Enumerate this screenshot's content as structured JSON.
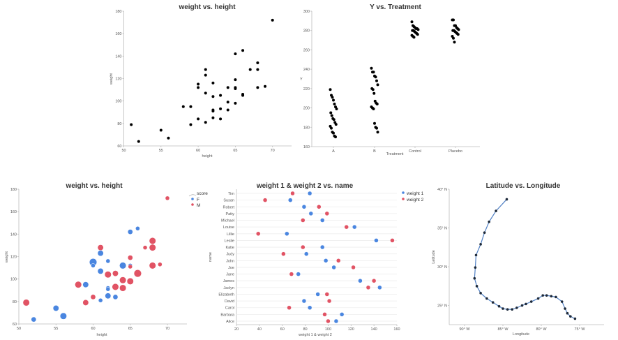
{
  "colors": {
    "F": "#4a86e0",
    "M": "#e15364",
    "weight 1": "#4a86e0",
    "weight 2": "#e15364",
    "dot": "#000000",
    "line": "#4f7fc4"
  },
  "chart_data": [
    {
      "type": "scatter",
      "title": "weight vs. height",
      "xlabel": "height",
      "ylabel": "weight",
      "xlim": [
        50,
        72.5
      ],
      "ylim": [
        60,
        180
      ],
      "xticks": [
        50,
        55,
        60,
        65,
        70
      ],
      "yticks": [
        60,
        80,
        100,
        120,
        140,
        160,
        180
      ],
      "x": [
        51,
        52,
        55,
        56,
        58,
        59,
        59,
        60,
        60,
        60,
        61,
        61,
        61,
        61,
        62,
        62,
        62,
        62,
        62,
        63,
        63,
        63,
        64,
        64,
        64,
        65,
        65,
        65,
        65,
        65,
        66,
        66,
        66,
        67,
        68,
        68,
        68,
        69,
        70
      ],
      "y": [
        79,
        64,
        74,
        67,
        95,
        95,
        79,
        115,
        112,
        84,
        128,
        123,
        107,
        81,
        116,
        104,
        92,
        91,
        85,
        105,
        93,
        84,
        112,
        99,
        92,
        142,
        119,
        112,
        111,
        98,
        145,
        106,
        105,
        128,
        134,
        128,
        112,
        113,
        172
      ]
    },
    {
      "type": "scatter",
      "title": "Y vs. Treatment",
      "xlabel": "Treatment",
      "ylabel": "Y",
      "ylim": [
        160,
        300
      ],
      "categories": [
        "A",
        "B",
        "Control",
        "Placebo"
      ],
      "yticks": [
        160,
        180,
        200,
        220,
        240,
        260,
        280,
        300
      ],
      "series": [
        {
          "category": "A",
          "values": [
            219,
            213,
            211,
            208,
            204,
            201,
            199,
            195,
            192,
            189,
            188,
            185,
            183,
            181,
            179,
            175,
            174,
            171,
            170
          ]
        },
        {
          "category": "B",
          "values": [
            241,
            237,
            237,
            233,
            232,
            228,
            224,
            220,
            219,
            215,
            207,
            205,
            204,
            201,
            200,
            199,
            184,
            180,
            179,
            175
          ]
        },
        {
          "category": "Control",
          "values": [
            289,
            285,
            284,
            283,
            282,
            282,
            281,
            280,
            280,
            279,
            278,
            277,
            276,
            275,
            274,
            273
          ]
        },
        {
          "category": "Placebo",
          "values": [
            291,
            291,
            285,
            285,
            283,
            282,
            281,
            280,
            280,
            279,
            278,
            277,
            276,
            274,
            272,
            268
          ]
        }
      ]
    },
    {
      "type": "scatter",
      "title": "weight vs. height",
      "xlabel": "height",
      "ylabel": "weight",
      "xlim": [
        50,
        72.5
      ],
      "ylim": [
        60,
        180
      ],
      "xticks": [
        50,
        55,
        60,
        65,
        70
      ],
      "yticks": [
        60,
        80,
        100,
        120,
        140,
        160,
        180
      ],
      "legend": {
        "size_title": "score",
        "entries": [
          "F",
          "M"
        ],
        "placement": "right"
      },
      "points": [
        {
          "x": 51,
          "y": 79,
          "g": "M",
          "score": 3
        },
        {
          "x": 52,
          "y": 64,
          "g": "F",
          "score": 2
        },
        {
          "x": 55,
          "y": 74,
          "g": "F",
          "score": 2.5
        },
        {
          "x": 56,
          "y": 67,
          "g": "F",
          "score": 3
        },
        {
          "x": 58,
          "y": 95,
          "g": "M",
          "score": 3
        },
        {
          "x": 59,
          "y": 95,
          "g": "F",
          "score": 2.5
        },
        {
          "x": 59,
          "y": 79,
          "g": "M",
          "score": 2.5
        },
        {
          "x": 60,
          "y": 115,
          "g": "F",
          "score": 3.5
        },
        {
          "x": 60,
          "y": 112,
          "g": "F",
          "score": 1.5
        },
        {
          "x": 60,
          "y": 84,
          "g": "M",
          "score": 2
        },
        {
          "x": 61,
          "y": 128,
          "g": "M",
          "score": 2.5
        },
        {
          "x": 61,
          "y": 123,
          "g": "F",
          "score": 2.5
        },
        {
          "x": 61,
          "y": 107,
          "g": "F",
          "score": 2.5
        },
        {
          "x": 61,
          "y": 81,
          "g": "F",
          "score": 1.5
        },
        {
          "x": 62,
          "y": 116,
          "g": "F",
          "score": 1.5
        },
        {
          "x": 62,
          "y": 104,
          "g": "M",
          "score": 3
        },
        {
          "x": 62,
          "y": 92,
          "g": "F",
          "score": 1.5
        },
        {
          "x": 62,
          "y": 91,
          "g": "F",
          "score": 1.5
        },
        {
          "x": 62,
          "y": 85,
          "g": "F",
          "score": 2.5
        },
        {
          "x": 63,
          "y": 105,
          "g": "M",
          "score": 2.5
        },
        {
          "x": 63,
          "y": 93,
          "g": "M",
          "score": 3
        },
        {
          "x": 63,
          "y": 84,
          "g": "F",
          "score": 2
        },
        {
          "x": 64,
          "y": 112,
          "g": "F",
          "score": 3
        },
        {
          "x": 64,
          "y": 99,
          "g": "M",
          "score": 3
        },
        {
          "x": 64,
          "y": 92,
          "g": "M",
          "score": 3
        },
        {
          "x": 65,
          "y": 142,
          "g": "F",
          "score": 2
        },
        {
          "x": 65,
          "y": 119,
          "g": "M",
          "score": 2
        },
        {
          "x": 65,
          "y": 112,
          "g": "F",
          "score": 1.5
        },
        {
          "x": 65,
          "y": 111,
          "g": "M",
          "score": 1.5
        },
        {
          "x": 65,
          "y": 98,
          "g": "M",
          "score": 3
        },
        {
          "x": 66,
          "y": 145,
          "g": "F",
          "score": 1.5
        },
        {
          "x": 66,
          "y": 105,
          "g": "M",
          "score": 3.5
        },
        {
          "x": 67,
          "y": 128,
          "g": "M",
          "score": 1.5
        },
        {
          "x": 68,
          "y": 134,
          "g": "M",
          "score": 3
        },
        {
          "x": 68,
          "y": 128,
          "g": "M",
          "score": 3
        },
        {
          "x": 68,
          "y": 112,
          "g": "M",
          "score": 3
        },
        {
          "x": 69,
          "y": 113,
          "g": "M",
          "score": 1.5
        },
        {
          "x": 70,
          "y": 172,
          "g": "M",
          "score": 1.5
        }
      ]
    },
    {
      "type": "scatter",
      "title": "weight 1 & weight 2 vs. name",
      "xlabel": "weight 1 & weight 2",
      "ylabel": "name",
      "xlim": [
        20,
        160
      ],
      "xticks": [
        20,
        40,
        60,
        80,
        100,
        120,
        140,
        160
      ],
      "legend": {
        "entries": [
          "weight 1",
          "weight 2"
        ],
        "placement": "top-right"
      },
      "categories": [
        "Tim",
        "Susan",
        "Robert",
        "Patty",
        "Michael",
        "Louise",
        "Lillie",
        "Leslie",
        "Katie",
        "Judy",
        "John",
        "Joe",
        "Jane",
        "James",
        "Jaclyn",
        "Elizabeth",
        "David",
        "Carol",
        "Barbara",
        "Alice"
      ],
      "series": [
        {
          "name": "weight 1",
          "values": [
            84,
            67,
            79,
            85,
            95,
            123,
            64,
            142,
            95,
            81,
            98,
            105,
            74,
            128,
            145,
            91,
            79,
            84,
            112,
            107
          ]
        },
        {
          "name": "weight 2",
          "values": [
            69,
            45,
            92,
            99,
            78,
            116,
            39,
            156,
            78,
            61,
            109,
            122,
            68,
            140,
            135,
            99,
            101,
            66,
            97,
            100
          ]
        }
      ]
    },
    {
      "type": "line",
      "title": "Latitude vs. Longitude",
      "xlabel": "Longitude",
      "ylabel": "Latitude",
      "xlim": [
        -92,
        -70
      ],
      "ylim": [
        22.5,
        40
      ],
      "xticks": [
        {
          "v": -90,
          "label": "90° W"
        },
        {
          "v": -85,
          "label": "85° W"
        },
        {
          "v": -80,
          "label": "80° W"
        },
        {
          "v": -75,
          "label": "75° W"
        }
      ],
      "yticks": [
        {
          "v": 25,
          "label": "25° N"
        },
        {
          "v": 30,
          "label": "30° N"
        },
        {
          "v": 35,
          "label": "35° N"
        },
        {
          "v": 40,
          "label": "40° N"
        }
      ],
      "lon": [
        -84.5,
        -85.9,
        -86.8,
        -87.4,
        -87.9,
        -88.5,
        -88.6,
        -88.7,
        -88.4,
        -87.9,
        -87.1,
        -86.3,
        -85.5,
        -85.0,
        -84.4,
        -83.8,
        -83.2,
        -82.5,
        -82.0,
        -81.3,
        -80.4,
        -79.8,
        -79.3,
        -78.7,
        -78.1,
        -77.3,
        -76.9,
        -76.6,
        -76.2,
        -75.6
      ],
      "lat": [
        38.7,
        37.2,
        35.8,
        34.4,
        32.9,
        31.5,
        29.9,
        28.5,
        27.5,
        26.6,
        25.9,
        25.4,
        24.9,
        24.6,
        24.5,
        24.5,
        24.7,
        25.0,
        25.2,
        25.5,
        25.9,
        26.3,
        26.3,
        26.2,
        26.1,
        25.5,
        24.6,
        24.0,
        23.6,
        23.3
      ]
    }
  ]
}
